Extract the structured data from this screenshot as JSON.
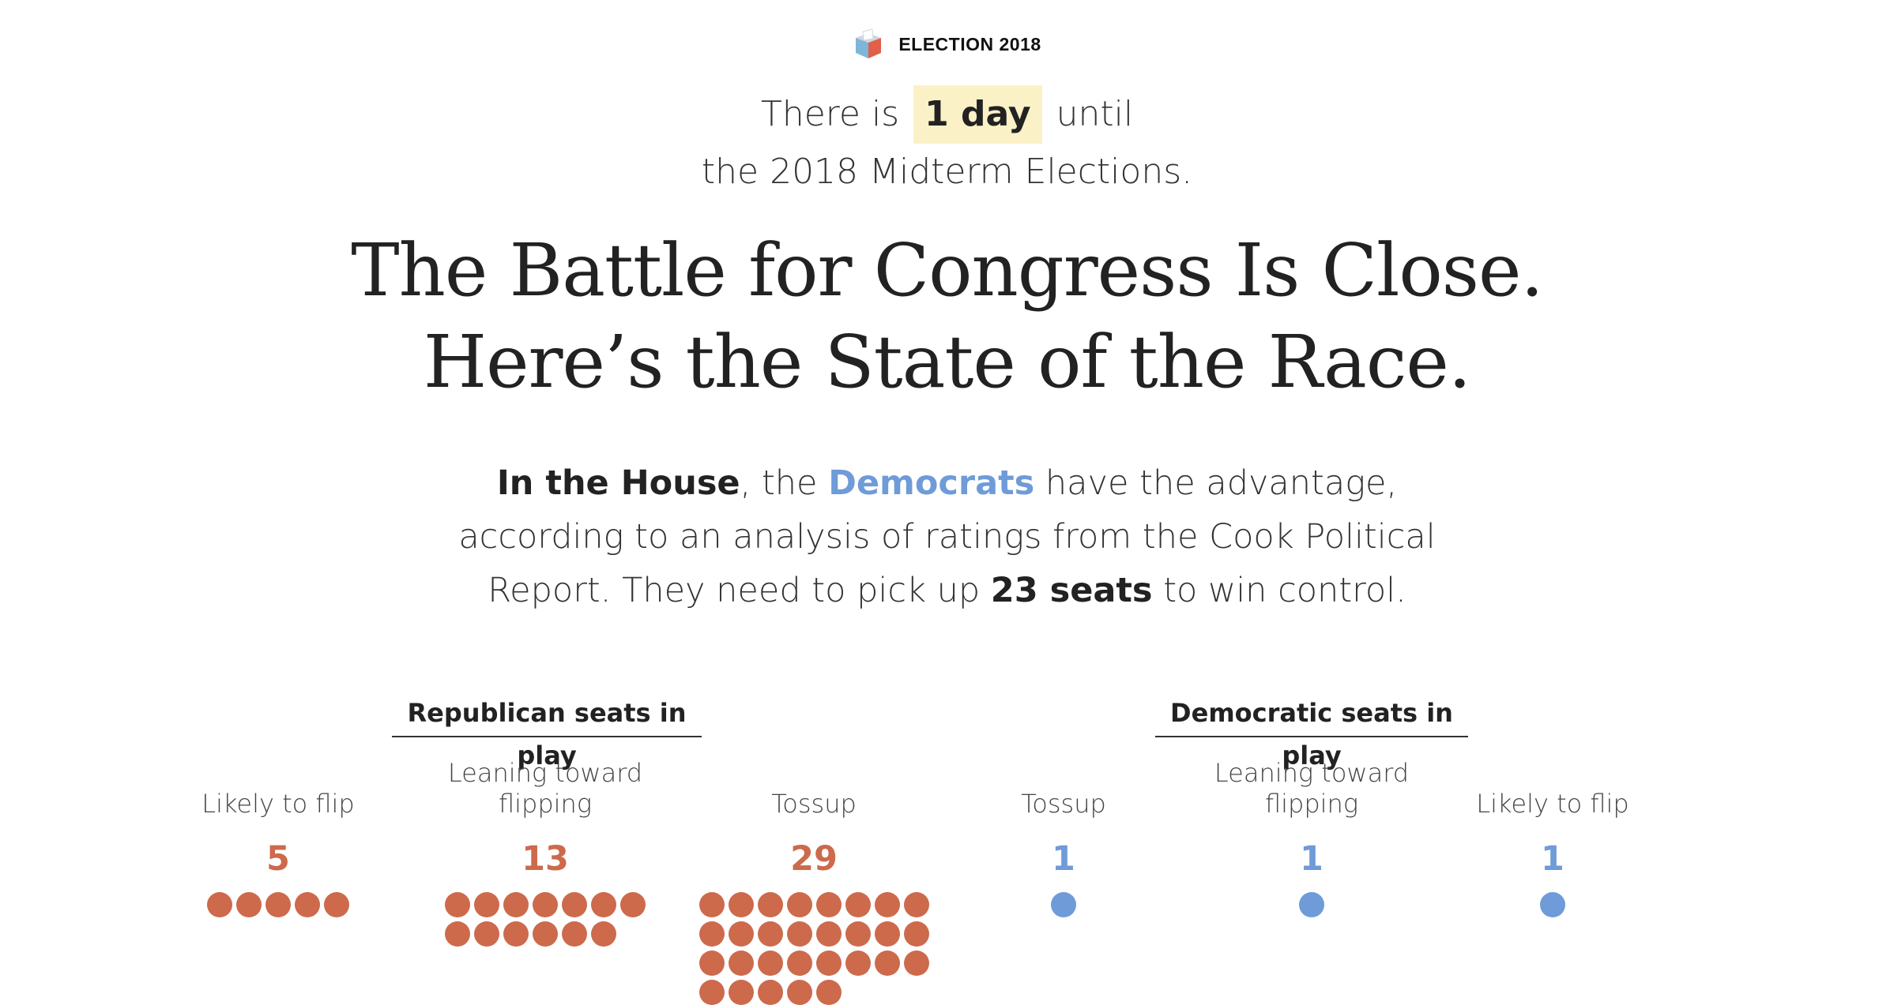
{
  "kicker": {
    "label": "ELECTION 2018",
    "icon": "ballot-box-icon"
  },
  "countdown": {
    "prefix": "There is",
    "days": "1 day",
    "suffix": "until",
    "line2": "the 2018 Midterm Elections."
  },
  "headline": {
    "line1": "The Battle for Congress Is Close.",
    "line2": "Here’s the State of the Race."
  },
  "summary": {
    "part1": "In the House",
    "part2": ", the ",
    "party": "Democrats",
    "part3": " have the advantage, according to an analysis of ratings from the Cook Political Report. They need to pick up ",
    "seats": "23 seats",
    "part4": " to win control."
  },
  "colors": {
    "republican": "#cd6a4c",
    "democrat": "#6f9bd8",
    "highlight": "#fbf1c7"
  },
  "groups": {
    "republican": {
      "title": "Republican seats in play",
      "columns": [
        {
          "label": "Likely to flip",
          "count": 5
        },
        {
          "label": "Leaning toward flipping",
          "count": 13
        },
        {
          "label": "Tossup",
          "count": 29
        }
      ]
    },
    "democratic": {
      "title": "Democratic seats in play",
      "columns": [
        {
          "label": "Tossup",
          "count": 1
        },
        {
          "label": "Leaning toward flipping",
          "count": 1
        },
        {
          "label": "Likely to flip",
          "count": 1
        }
      ]
    }
  }
}
